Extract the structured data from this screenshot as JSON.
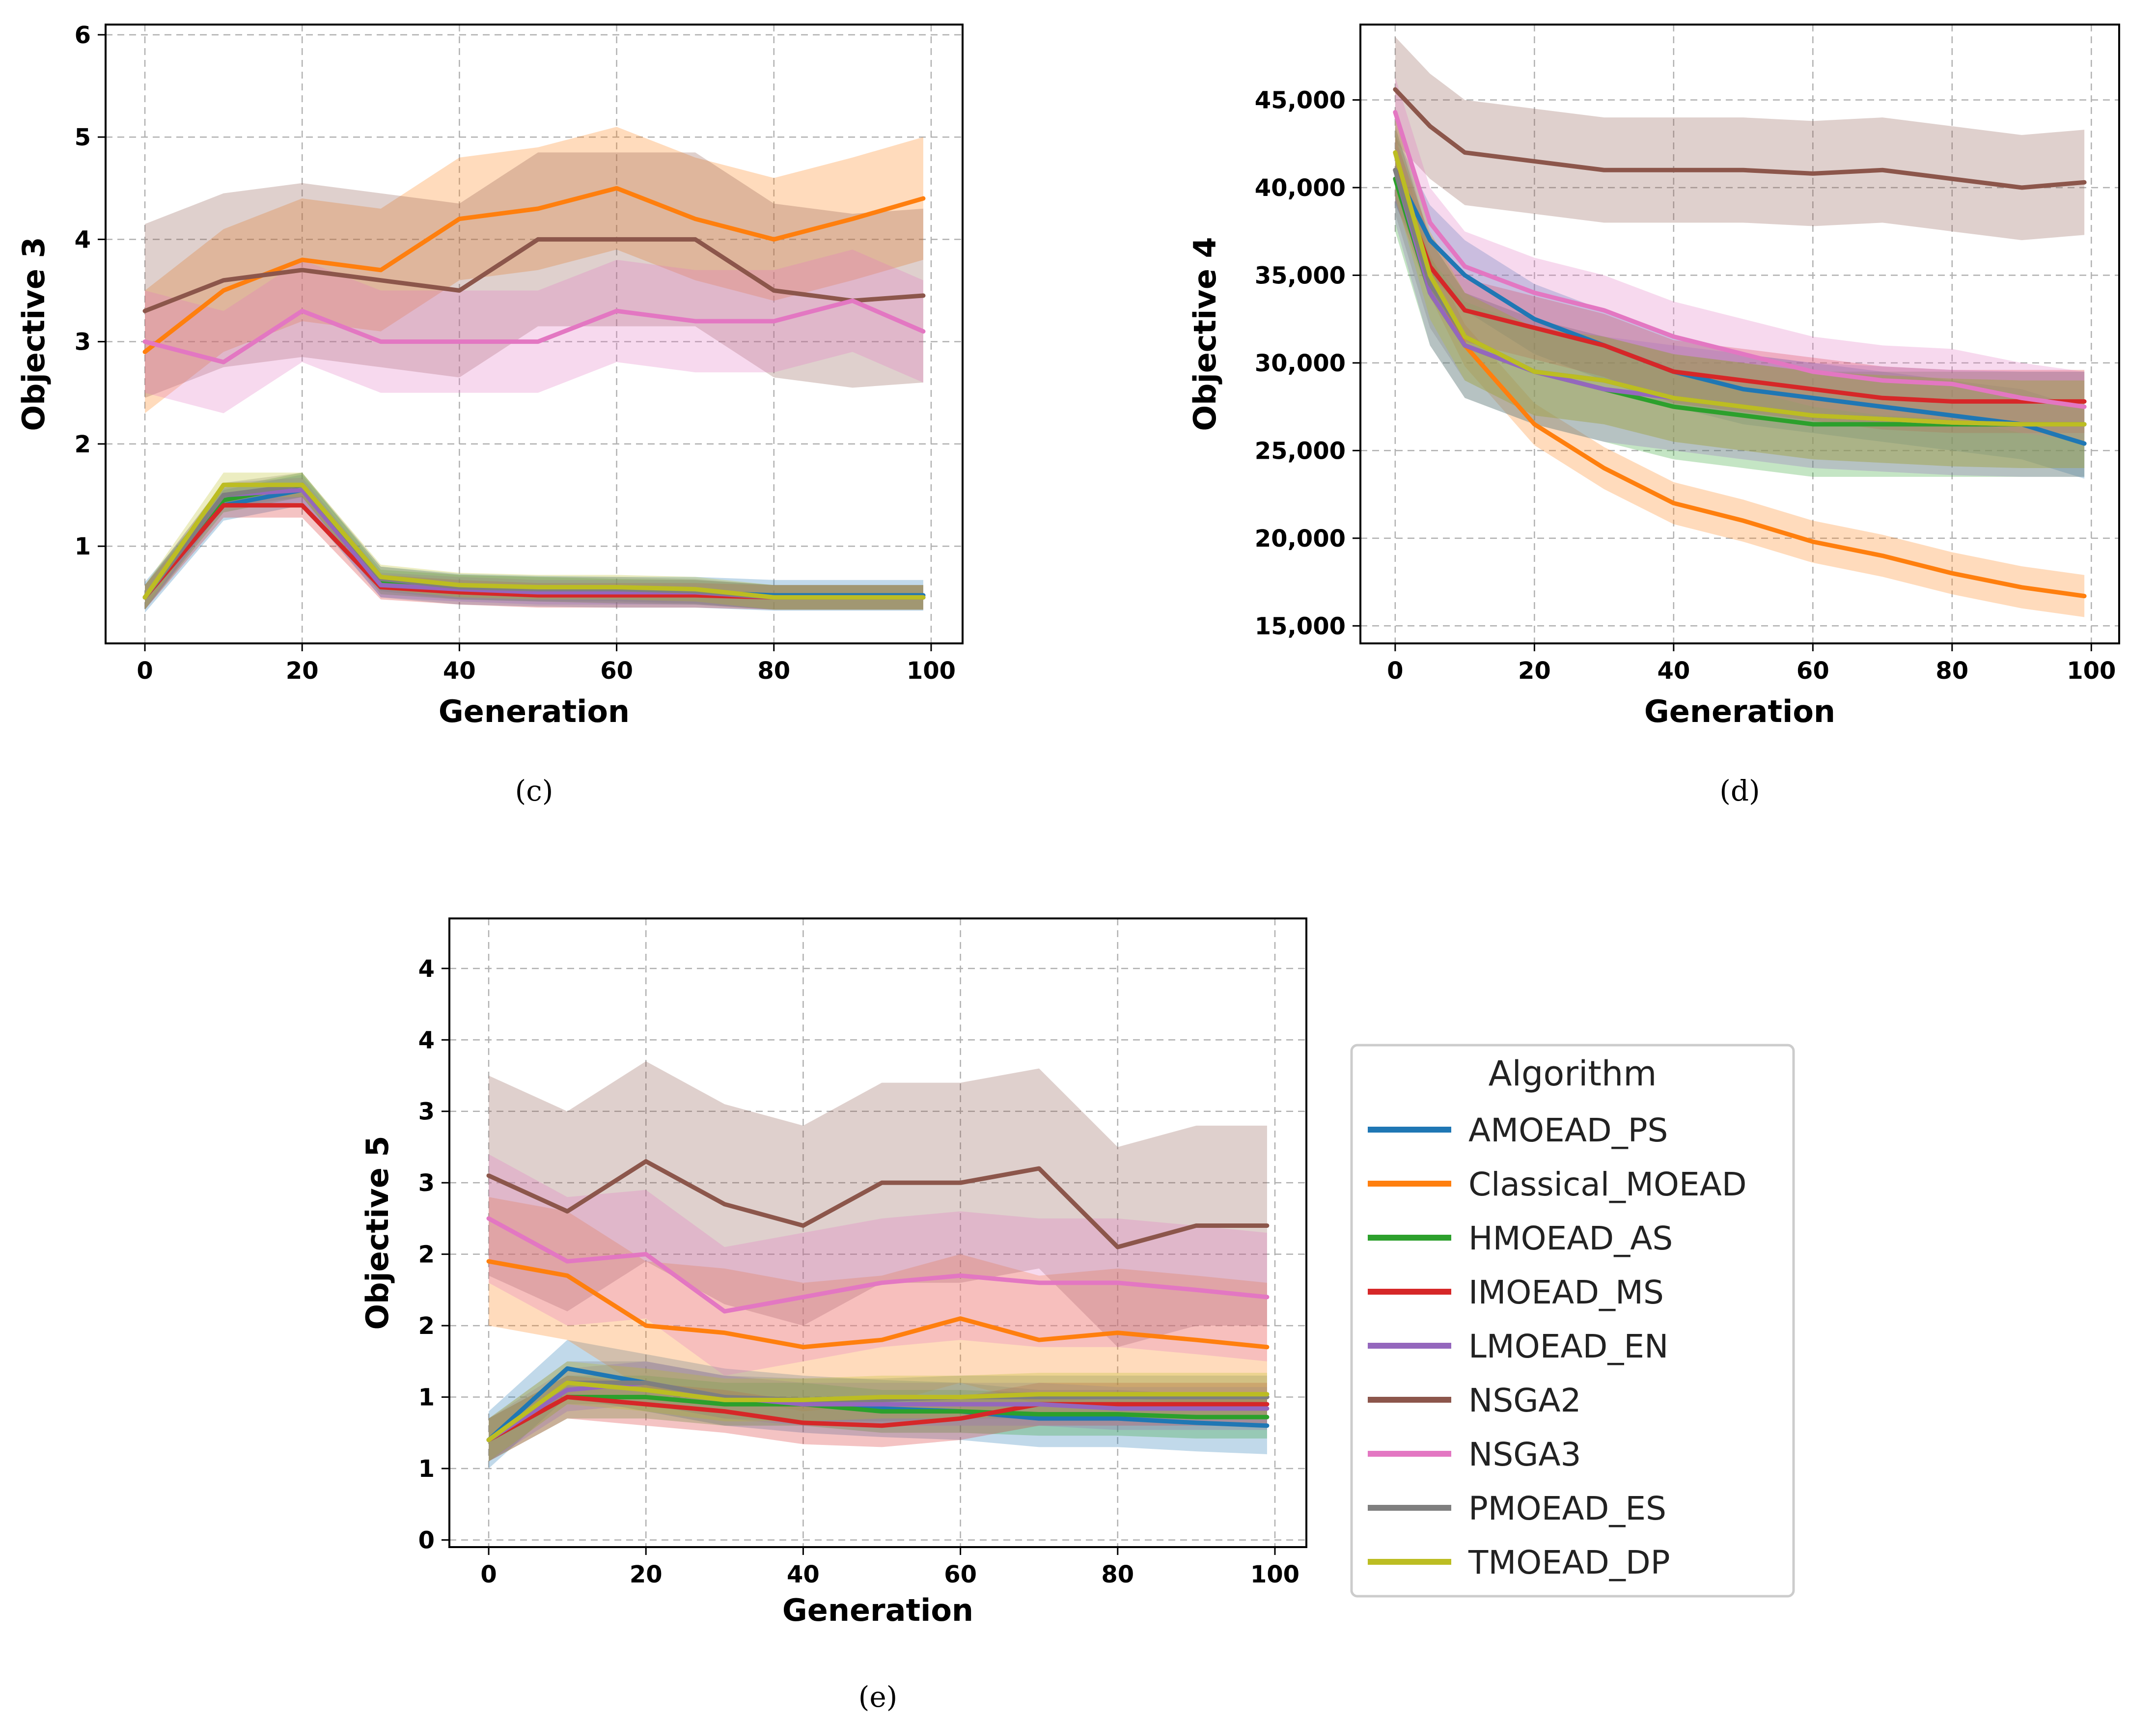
{
  "figure": {
    "legend": {
      "title": "Algorithm",
      "entries": [
        {
          "name": "AMOEAD_PS",
          "color": "#1f77b4"
        },
        {
          "name": "Classical_MOEAD",
          "color": "#ff7f0e"
        },
        {
          "name": "HMOEAD_AS",
          "color": "#2ca02c"
        },
        {
          "name": "IMOEAD_MS",
          "color": "#d62728"
        },
        {
          "name": "LMOEAD_EN",
          "color": "#9467bd"
        },
        {
          "name": "NSGA2",
          "color": "#8c564b"
        },
        {
          "name": "NSGA3",
          "color": "#e377c2"
        },
        {
          "name": "PMOEAD_ES",
          "color": "#7f7f7f"
        },
        {
          "name": "TMOEAD_DP",
          "color": "#bcbd22"
        }
      ]
    }
  },
  "chart_data": [
    {
      "type": "line",
      "caption": "(c)",
      "xlabel": "Generation",
      "ylabel": "Objective 3",
      "xlim": [
        -5,
        104
      ],
      "ylim": [
        0.05,
        6.1
      ],
      "xticks": [
        0,
        20,
        40,
        60,
        80,
        100
      ],
      "xtick_labels": [
        "0",
        "20",
        "40",
        "60",
        "80",
        "100"
      ],
      "yticks": [
        1,
        2,
        3,
        4,
        5,
        6
      ],
      "ytick_labels": [
        "1",
        "2",
        "3",
        "4",
        "5",
        "6"
      ],
      "grid": true,
      "x": [
        0,
        10,
        20,
        30,
        40,
        50,
        60,
        70,
        80,
        90,
        99
      ],
      "series": [
        {
          "name": "AMOEAD_PS",
          "values": [
            0.5,
            1.4,
            1.55,
            0.65,
            0.58,
            0.56,
            0.55,
            0.55,
            0.52,
            0.52,
            0.52
          ],
          "band": 0.15
        },
        {
          "name": "Classical_MOEAD",
          "values": [
            2.9,
            3.5,
            3.8,
            3.7,
            4.2,
            4.3,
            4.5,
            4.2,
            4.0,
            4.2,
            4.4
          ],
          "band": 0.6
        },
        {
          "name": "HMOEAD_AS",
          "values": [
            0.5,
            1.45,
            1.6,
            0.65,
            0.6,
            0.58,
            0.56,
            0.55,
            0.5,
            0.5,
            0.5
          ],
          "band": 0.12
        },
        {
          "name": "IMOEAD_MS",
          "values": [
            0.5,
            1.4,
            1.4,
            0.6,
            0.55,
            0.52,
            0.52,
            0.52,
            0.5,
            0.5,
            0.5
          ],
          "band": 0.12
        },
        {
          "name": "LMOEAD_EN",
          "values": [
            0.5,
            1.5,
            1.55,
            0.62,
            0.58,
            0.55,
            0.55,
            0.55,
            0.5,
            0.5,
            0.5
          ],
          "band": 0.12
        },
        {
          "name": "NSGA2",
          "values": [
            3.3,
            3.6,
            3.7,
            3.6,
            3.5,
            4.0,
            4.0,
            4.0,
            3.5,
            3.4,
            3.45
          ],
          "band": 0.85
        },
        {
          "name": "NSGA3",
          "values": [
            3.0,
            2.8,
            3.3,
            3.0,
            3.0,
            3.0,
            3.3,
            3.2,
            3.2,
            3.4,
            3.1
          ],
          "band": 0.5
        },
        {
          "name": "PMOEAD_ES",
          "values": [
            0.5,
            1.5,
            1.6,
            0.68,
            0.6,
            0.58,
            0.58,
            0.56,
            0.5,
            0.5,
            0.5
          ],
          "band": 0.12
        },
        {
          "name": "TMOEAD_DP",
          "values": [
            0.5,
            1.6,
            1.6,
            0.7,
            0.62,
            0.6,
            0.6,
            0.58,
            0.5,
            0.5,
            0.5
          ],
          "band": 0.12
        }
      ]
    },
    {
      "type": "line",
      "caption": "(d)",
      "xlabel": "Generation",
      "ylabel": "Objective 4",
      "xlim": [
        -5,
        104
      ],
      "ylim": [
        14000,
        49300
      ],
      "xticks": [
        0,
        20,
        40,
        60,
        80,
        100
      ],
      "xtick_labels": [
        "0",
        "20",
        "40",
        "60",
        "80",
        "100"
      ],
      "yticks": [
        15000,
        20000,
        25000,
        30000,
        35000,
        40000,
        45000
      ],
      "ytick_labels": [
        "15,000",
        "20,000",
        "25,000",
        "30,000",
        "35,000",
        "40,000",
        "45,000"
      ],
      "grid": true,
      "x": [
        0,
        5,
        10,
        20,
        30,
        40,
        50,
        60,
        70,
        80,
        90,
        99
      ],
      "series": [
        {
          "name": "AMOEAD_PS",
          "values": [
            41000,
            37000,
            35000,
            32500,
            31000,
            29500,
            28500,
            28000,
            27500,
            27000,
            26500,
            25400
          ],
          "band": 2000
        },
        {
          "name": "Classical_MOEAD",
          "values": [
            42000,
            35000,
            31000,
            26500,
            24000,
            22000,
            21000,
            19800,
            19000,
            18000,
            17200,
            16700
          ],
          "band": 1200
        },
        {
          "name": "HMOEAD_AS",
          "values": [
            40500,
            34000,
            31000,
            29500,
            28500,
            27500,
            27000,
            26500,
            26500,
            26500,
            26500,
            26500
          ],
          "band": 3000
        },
        {
          "name": "IMOEAD_MS",
          "values": [
            41000,
            35500,
            33000,
            32000,
            31000,
            29500,
            29000,
            28500,
            28000,
            27800,
            27800,
            27800
          ],
          "band": 1800
        },
        {
          "name": "LMOEAD_EN",
          "values": [
            41000,
            34000,
            31000,
            29500,
            28500,
            28000,
            27500,
            27000,
            26800,
            26600,
            26500,
            26500
          ],
          "band": 3000
        },
        {
          "name": "NSGA2",
          "values": [
            45600,
            43500,
            42000,
            41500,
            41000,
            41000,
            41000,
            40800,
            41000,
            40500,
            40000,
            40300
          ],
          "band": 3000
        },
        {
          "name": "NSGA3",
          "values": [
            44300,
            38000,
            35500,
            34000,
            33000,
            31500,
            30500,
            29500,
            29000,
            28800,
            28000,
            27500
          ],
          "band": 2000
        },
        {
          "name": "PMOEAD_ES",
          "values": [
            41000,
            34500,
            31500,
            29500,
            29000,
            28000,
            27500,
            27000,
            26800,
            26600,
            26500,
            26500
          ],
          "band": 2500
        },
        {
          "name": "TMOEAD_DP",
          "values": [
            42000,
            35000,
            31500,
            29500,
            29000,
            28000,
            27500,
            27000,
            26800,
            26600,
            26500,
            26500
          ],
          "band": 2500
        }
      ]
    },
    {
      "type": "line",
      "caption": "(e)",
      "xlabel": "Generation",
      "ylabel": "Objective 5",
      "xlim": [
        -5,
        104
      ],
      "ylim": [
        -0.05,
        4.35
      ],
      "xticks": [
        0,
        20,
        40,
        60,
        80,
        100
      ],
      "xtick_labels": [
        "0",
        "20",
        "40",
        "60",
        "80",
        "100"
      ],
      "yticks": [
        0,
        0.5,
        1,
        1.5,
        2,
        2.5,
        3,
        3.5,
        4
      ],
      "ytick_labels": [
        "0",
        "1",
        "1",
        "2",
        "2",
        "3",
        "3",
        "4",
        "4"
      ],
      "grid": true,
      "x": [
        0,
        10,
        20,
        30,
        40,
        50,
        60,
        70,
        80,
        90,
        99
      ],
      "series": [
        {
          "name": "AMOEAD_PS",
          "values": [
            0.7,
            1.2,
            1.1,
            1.0,
            0.95,
            0.92,
            0.9,
            0.85,
            0.85,
            0.82,
            0.8
          ],
          "band": 0.2
        },
        {
          "name": "Classical_MOEAD",
          "values": [
            1.95,
            1.85,
            1.5,
            1.45,
            1.35,
            1.4,
            1.55,
            1.4,
            1.45,
            1.4,
            1.35
          ],
          "band": 0.45
        },
        {
          "name": "HMOEAD_AS",
          "values": [
            0.7,
            1.0,
            1.0,
            0.95,
            0.95,
            0.9,
            0.9,
            0.88,
            0.88,
            0.86,
            0.86
          ],
          "band": 0.15
        },
        {
          "name": "IMOEAD_MS",
          "values": [
            0.7,
            1.0,
            0.95,
            0.9,
            0.82,
            0.8,
            0.85,
            0.95,
            0.95,
            0.95,
            0.95
          ],
          "band": 0.15
        },
        {
          "name": "LMOEAD_EN",
          "values": [
            0.7,
            1.05,
            1.1,
            1.0,
            0.95,
            0.95,
            0.95,
            0.95,
            0.92,
            0.92,
            0.92
          ],
          "band": 0.15
        },
        {
          "name": "NSGA2",
          "values": [
            2.55,
            2.3,
            2.65,
            2.35,
            2.2,
            2.5,
            2.5,
            2.6,
            2.05,
            2.2,
            2.2
          ],
          "band": 0.7
        },
        {
          "name": "NSGA3",
          "values": [
            2.25,
            1.95,
            2.0,
            1.6,
            1.7,
            1.8,
            1.85,
            1.8,
            1.8,
            1.75,
            1.7
          ],
          "band": 0.45
        },
        {
          "name": "PMOEAD_ES",
          "values": [
            0.7,
            1.1,
            1.1,
            1.0,
            0.98,
            0.98,
            1.0,
            1.0,
            1.0,
            1.0,
            1.0
          ],
          "band": 0.15
        },
        {
          "name": "TMOEAD_DP",
          "values": [
            0.7,
            1.1,
            1.05,
            0.98,
            0.98,
            1.0,
            1.0,
            1.02,
            1.02,
            1.02,
            1.02
          ],
          "band": 0.15
        }
      ]
    }
  ]
}
